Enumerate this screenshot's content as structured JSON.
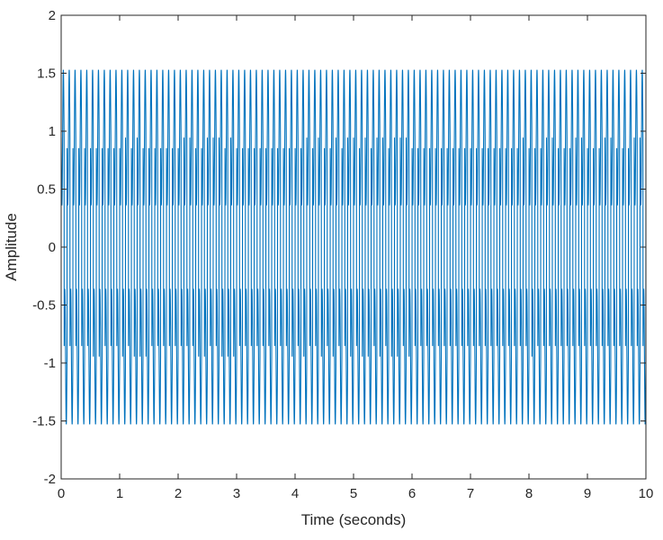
{
  "chart_data": {
    "type": "line",
    "title": "",
    "xlabel": "Time (seconds)",
    "ylabel": "Amplitude",
    "xlim": [
      0,
      10
    ],
    "ylim": [
      -2,
      2
    ],
    "xticks": [
      0,
      1,
      2,
      3,
      4,
      5,
      6,
      7,
      8,
      9,
      10
    ],
    "yticks": [
      -2,
      -1.5,
      -1,
      -0.5,
      0,
      0.5,
      1,
      1.5,
      2
    ],
    "xtick_labels": [
      "0",
      "1",
      "2",
      "3",
      "4",
      "5",
      "6",
      "7",
      "8",
      "9",
      "10"
    ],
    "ytick_labels": [
      "-2",
      "-1.5",
      "-1",
      "-0.5",
      "0",
      "0.5",
      "1",
      "1.5",
      "2"
    ],
    "grid": false,
    "series": [
      {
        "color": "#0072BD",
        "description_values": {
          "signal": "square wave with fast oscillation",
          "peak_high": 1.53,
          "peak_low": -1.53,
          "inner_band_high": 0.36,
          "inner_band_low": -0.36,
          "pulse_frequency_hz": 10,
          "oscillation_frequency_hz": 20,
          "duration_s": 10
        }
      }
    ]
  }
}
